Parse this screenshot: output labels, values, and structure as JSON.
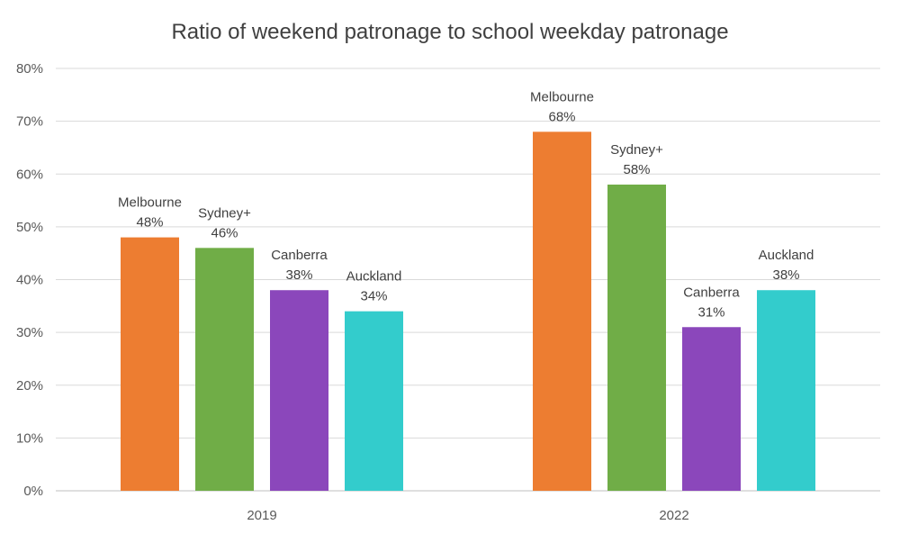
{
  "chart_data": {
    "type": "bar",
    "title": "Ratio of weekend patronage to school weekday patronage",
    "xlabel": "",
    "ylabel": "",
    "categories": [
      "2019",
      "2022"
    ],
    "series": [
      {
        "name": "Melbourne",
        "color": "#ED7D31",
        "values": [
          48,
          68
        ]
      },
      {
        "name": "Sydney+",
        "color": "#70AD47",
        "values": [
          46,
          58
        ]
      },
      {
        "name": "Canberra",
        "color": "#8B47BB",
        "values": [
          38,
          31
        ]
      },
      {
        "name": "Auckland",
        "color": "#33CCCC",
        "values": [
          34,
          38
        ]
      }
    ],
    "ylim": [
      0,
      80
    ],
    "yticks": [
      0,
      10,
      20,
      30,
      40,
      50,
      60,
      70,
      80
    ],
    "ytick_labels": [
      "0%",
      "10%",
      "20%",
      "30%",
      "40%",
      "50%",
      "60%",
      "70%",
      "80%"
    ],
    "value_labels": [
      [
        "48%",
        "68%"
      ],
      [
        "46%",
        "58%"
      ],
      [
        "38%",
        "31%"
      ],
      [
        "34%",
        "38%"
      ]
    ],
    "grid": true,
    "legend": "none (data labels show series names)"
  }
}
